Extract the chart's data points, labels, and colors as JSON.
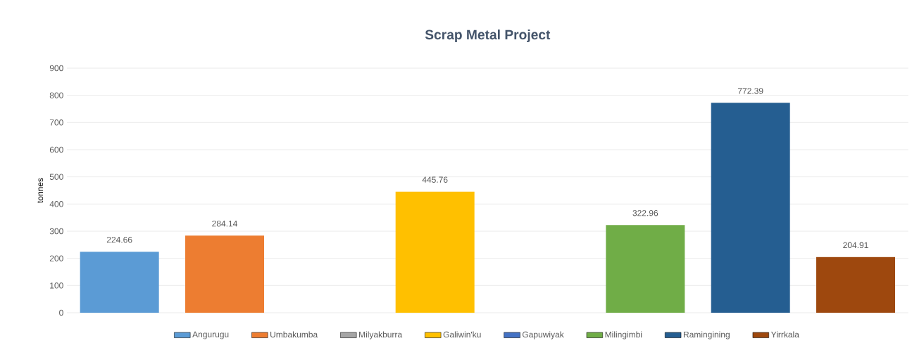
{
  "chart_data": {
    "type": "bar",
    "title": "Scrap Metal Project",
    "ylabel": "tonnes",
    "categories": [
      null,
      null,
      null,
      null,
      null,
      null,
      null,
      null
    ],
    "series": [
      {
        "name": "Angurugu",
        "color": "#5b9bd5",
        "values": [
          224.66,
          null,
          null,
          null,
          null,
          null,
          null,
          null
        ]
      },
      {
        "name": "Umbakumba",
        "color": "#ed7d31",
        "values": [
          null,
          284.14,
          null,
          null,
          null,
          null,
          null,
          null
        ]
      },
      {
        "name": "Milyakburra",
        "color": "#a5a5a5",
        "values": [
          null,
          null,
          null,
          null,
          null,
          null,
          null,
          null
        ]
      },
      {
        "name": "Galiwin'ku",
        "color": "#ffc000",
        "values": [
          null,
          null,
          null,
          445.76,
          null,
          null,
          null,
          null
        ]
      },
      {
        "name": "Gapuwiyak",
        "color": "#4472c4",
        "values": [
          null,
          null,
          null,
          null,
          null,
          null,
          null,
          null
        ]
      },
      {
        "name": "Milingimbi",
        "color": "#70ad47",
        "values": [
          null,
          null,
          null,
          null,
          null,
          322.96,
          null,
          null
        ]
      },
      {
        "name": "Ramingining",
        "color": "#255e91",
        "values": [
          null,
          null,
          null,
          null,
          null,
          null,
          772.39,
          null
        ]
      },
      {
        "name": "Yirrkala",
        "color": "#9e480e",
        "values": [
          null,
          null,
          null,
          null,
          null,
          null,
          null,
          204.91
        ]
      }
    ],
    "ylim": [
      0,
      900
    ],
    "yticks": [
      0,
      100,
      200,
      300,
      400,
      500,
      600,
      700,
      800,
      900
    ],
    "grid": "y",
    "legend": "bottom",
    "data_labels": true
  }
}
